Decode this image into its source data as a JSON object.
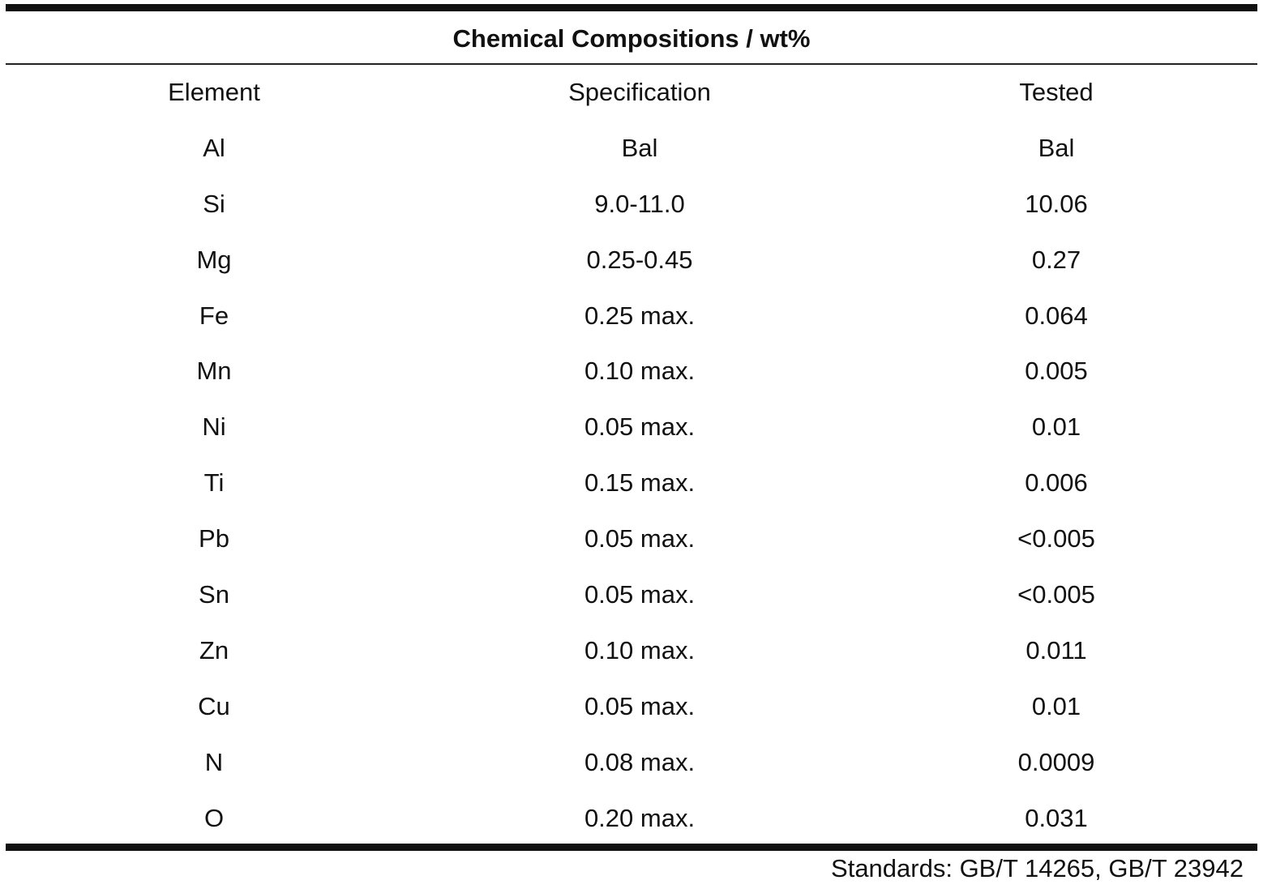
{
  "title": "Chemical Compositions / wt%",
  "columns": [
    "Element",
    "Specification",
    "Tested"
  ],
  "rows": [
    {
      "element": "Al",
      "specification": "Bal",
      "tested": "Bal"
    },
    {
      "element": "Si",
      "specification": "9.0-11.0",
      "tested": "10.06"
    },
    {
      "element": "Mg",
      "specification": "0.25-0.45",
      "tested": "0.27"
    },
    {
      "element": "Fe",
      "specification": "0.25 max.",
      "tested": "0.064"
    },
    {
      "element": "Mn",
      "specification": "0.10 max.",
      "tested": "0.005"
    },
    {
      "element": "Ni",
      "specification": "0.05 max.",
      "tested": "0.01"
    },
    {
      "element": "Ti",
      "specification": "0.15 max.",
      "tested": "0.006"
    },
    {
      "element": "Pb",
      "specification": "0.05 max.",
      "tested": "<0.005"
    },
    {
      "element": "Sn",
      "specification": "0.05 max.",
      "tested": "<0.005"
    },
    {
      "element": "Zn",
      "specification": "0.10 max.",
      "tested": "0.011"
    },
    {
      "element": "Cu",
      "specification": "0.05 max.",
      "tested": "0.01"
    },
    {
      "element": "N",
      "specification": "0.08 max.",
      "tested": "0.0009"
    },
    {
      "element": "O",
      "specification": "0.20 max.",
      "tested": "0.031"
    }
  ],
  "footnote": "Standards: GB/T 14265, GB/T 23942"
}
